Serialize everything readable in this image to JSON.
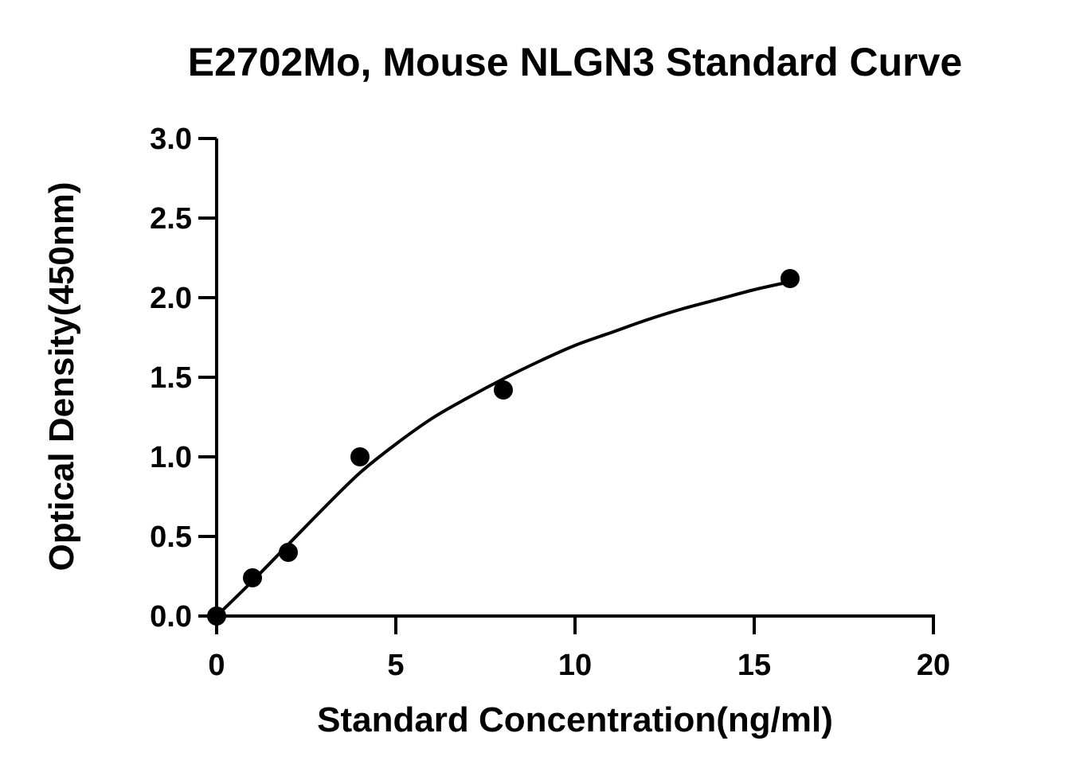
{
  "chart_data": {
    "type": "scatter",
    "title": "E2702Mo, Mouse NLGN3  Standard Curve",
    "xlabel": "Standard Concentration(ng/ml)",
    "ylabel": "Optical Density(450nm)",
    "xlim": [
      0,
      20
    ],
    "ylim": [
      0,
      3.0
    ],
    "xticks": [
      0,
      5,
      10,
      15,
      20
    ],
    "xtick_labels": [
      "0",
      "5",
      "10",
      "15",
      "20"
    ],
    "yticks": [
      0,
      0.5,
      1.0,
      1.5,
      2.0,
      2.5,
      3.0
    ],
    "ytick_labels": [
      "0.0",
      "0.5",
      "1.0",
      "1.5",
      "2.0",
      "2.5",
      "3.0"
    ],
    "grid": false,
    "series": [
      {
        "x": [
          0,
          1,
          2,
          4,
          8,
          16
        ],
        "y": [
          0.0,
          0.24,
          0.4,
          1.0,
          1.42,
          2.12
        ],
        "marker": "circle",
        "color": "#000000"
      }
    ],
    "fit_curve": {
      "x": [
        0,
        1,
        2,
        3,
        4,
        5,
        6,
        7,
        8,
        9,
        10,
        11,
        12,
        13,
        14,
        15,
        16
      ],
      "y": [
        0.0,
        0.22,
        0.45,
        0.68,
        0.9,
        1.08,
        1.24,
        1.37,
        1.49,
        1.6,
        1.7,
        1.78,
        1.86,
        1.93,
        1.99,
        2.05,
        2.1
      ],
      "color": "#000000"
    }
  }
}
